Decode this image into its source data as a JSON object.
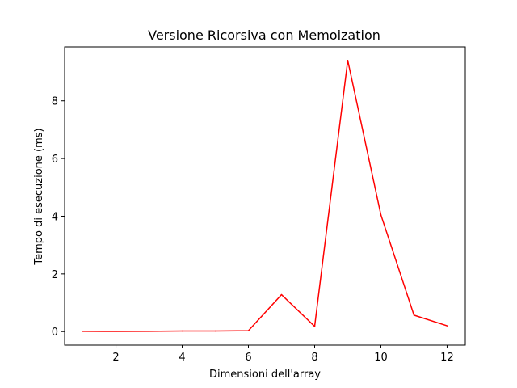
{
  "chart_data": {
    "type": "line",
    "title": "Versione Ricorsiva con Memoization",
    "xlabel": "Dimensioni dell'array",
    "ylabel": "Tempo di esecuzione (ms)",
    "xlim": [
      0.45,
      12.55
    ],
    "ylim": [
      -0.47,
      9.87
    ],
    "xticks": [
      2,
      4,
      6,
      8,
      10,
      12
    ],
    "yticks": [
      0,
      2,
      4,
      6,
      8
    ],
    "grid": false,
    "series": [
      {
        "color": "#ff0000",
        "x": [
          1,
          2,
          3,
          4,
          5,
          6,
          7,
          8,
          9,
          10,
          11,
          12
        ],
        "y": [
          0.01,
          0.005,
          0.01,
          0.02,
          0.02,
          0.03,
          1.28,
          0.18,
          9.4,
          4.05,
          0.57,
          0.2
        ]
      }
    ]
  }
}
